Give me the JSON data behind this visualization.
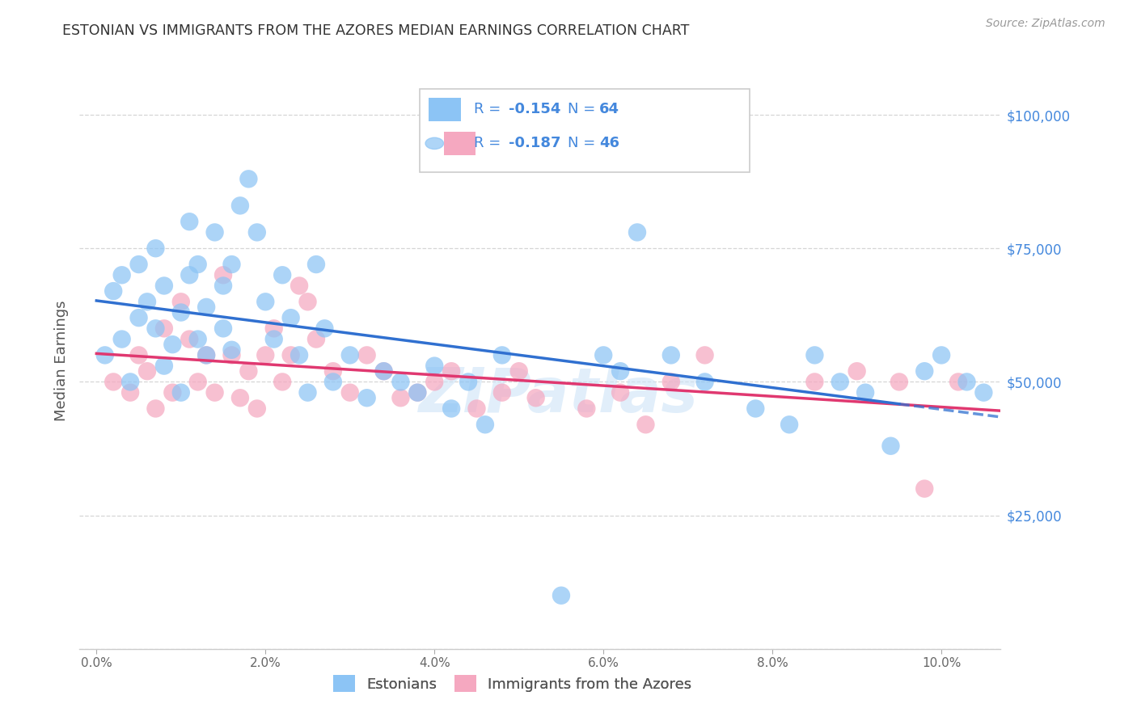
{
  "title": "ESTONIAN VS IMMIGRANTS FROM THE AZORES MEDIAN EARNINGS CORRELATION CHART",
  "source": "Source: ZipAtlas.com",
  "ylabel": "Median Earnings",
  "xlabel_ticks": [
    "0.0%",
    "2.0%",
    "4.0%",
    "6.0%",
    "8.0%",
    "10.0%"
  ],
  "xlabel_vals": [
    0.0,
    0.02,
    0.04,
    0.06,
    0.08,
    0.1
  ],
  "yticks": [
    0,
    25000,
    50000,
    75000,
    100000
  ],
  "ytick_labels": [
    "",
    "$25,000",
    "$50,000",
    "$75,000",
    "$100,000"
  ],
  "ylim": [
    0,
    108000
  ],
  "xlim": [
    -0.002,
    0.107
  ],
  "R_estonian": -0.154,
  "N_estonian": 64,
  "R_azores": -0.187,
  "N_azores": 46,
  "legend_label1": "Estonians",
  "legend_label2": "Immigrants from the Azores",
  "color_estonian": "#8CC4F5",
  "color_azores": "#F5A8C0",
  "line_color_estonian": "#3070D0",
  "line_color_azores": "#E03870",
  "background": "#ffffff",
  "grid_color": "#cccccc",
  "title_color": "#333333",
  "source_color": "#999999",
  "legend_text_color": "#4488dd",
  "ytick_label_color": "#4488dd",
  "xtick_label_color": "#666666",
  "watermark": "ZIPatlas",
  "estonian_x": [
    0.001,
    0.002,
    0.003,
    0.003,
    0.004,
    0.005,
    0.005,
    0.006,
    0.007,
    0.007,
    0.008,
    0.008,
    0.009,
    0.01,
    0.01,
    0.011,
    0.011,
    0.012,
    0.012,
    0.013,
    0.013,
    0.014,
    0.015,
    0.015,
    0.016,
    0.016,
    0.017,
    0.018,
    0.019,
    0.02,
    0.021,
    0.022,
    0.023,
    0.024,
    0.025,
    0.026,
    0.027,
    0.028,
    0.03,
    0.032,
    0.034,
    0.036,
    0.038,
    0.04,
    0.042,
    0.044,
    0.046,
    0.048,
    0.055,
    0.06,
    0.062,
    0.064,
    0.068,
    0.072,
    0.078,
    0.082,
    0.085,
    0.088,
    0.091,
    0.094,
    0.098,
    0.1,
    0.103,
    0.105
  ],
  "estonian_y": [
    55000,
    67000,
    58000,
    70000,
    50000,
    62000,
    72000,
    65000,
    60000,
    75000,
    53000,
    68000,
    57000,
    63000,
    48000,
    70000,
    80000,
    58000,
    72000,
    64000,
    55000,
    78000,
    60000,
    68000,
    56000,
    72000,
    83000,
    88000,
    78000,
    65000,
    58000,
    70000,
    62000,
    55000,
    48000,
    72000,
    60000,
    50000,
    55000,
    47000,
    52000,
    50000,
    48000,
    53000,
    45000,
    50000,
    42000,
    55000,
    10000,
    55000,
    52000,
    78000,
    55000,
    50000,
    45000,
    42000,
    55000,
    50000,
    48000,
    38000,
    52000,
    55000,
    50000,
    48000
  ],
  "azores_x": [
    0.002,
    0.004,
    0.005,
    0.006,
    0.007,
    0.008,
    0.009,
    0.01,
    0.011,
    0.012,
    0.013,
    0.014,
    0.015,
    0.016,
    0.017,
    0.018,
    0.019,
    0.02,
    0.021,
    0.022,
    0.023,
    0.024,
    0.025,
    0.026,
    0.028,
    0.03,
    0.032,
    0.034,
    0.036,
    0.038,
    0.04,
    0.042,
    0.045,
    0.048,
    0.05,
    0.052,
    0.058,
    0.062,
    0.065,
    0.068,
    0.072,
    0.085,
    0.09,
    0.095,
    0.098,
    0.102
  ],
  "azores_y": [
    50000,
    48000,
    55000,
    52000,
    45000,
    60000,
    48000,
    65000,
    58000,
    50000,
    55000,
    48000,
    70000,
    55000,
    47000,
    52000,
    45000,
    55000,
    60000,
    50000,
    55000,
    68000,
    65000,
    58000,
    52000,
    48000,
    55000,
    52000,
    47000,
    48000,
    50000,
    52000,
    45000,
    48000,
    52000,
    47000,
    45000,
    48000,
    42000,
    50000,
    55000,
    50000,
    52000,
    50000,
    30000,
    50000
  ]
}
